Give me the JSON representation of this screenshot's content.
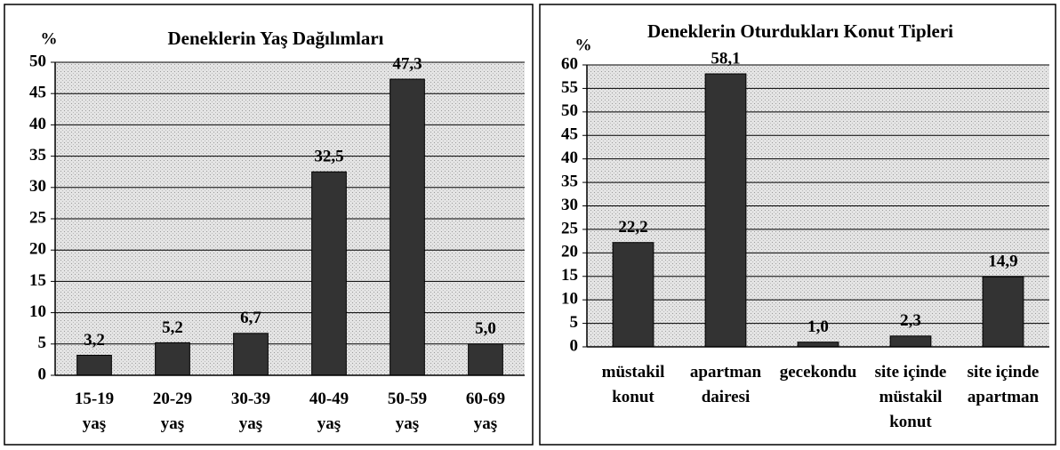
{
  "chart_data": [
    {
      "type": "bar",
      "title": "Deneklerin Yaş Dağılımları",
      "y_label": "%",
      "categories": [
        "15-19\nyaş",
        "20-29\nyaş",
        "30-39\nyaş",
        "40-49\nyaş",
        "50-59\nyaş",
        "60-69\nyaş"
      ],
      "values": [
        3.2,
        5.2,
        6.7,
        32.5,
        47.3,
        5.0
      ],
      "value_labels": [
        "3,2",
        "5,2",
        "6,7",
        "32,5",
        "47,3",
        "5,0"
      ],
      "color": "#333333",
      "ylim": [
        0,
        50
      ],
      "yticks": [
        0,
        5,
        10,
        15,
        20,
        25,
        30,
        35,
        40,
        45,
        50
      ],
      "grid": true
    },
    {
      "type": "bar",
      "title": "Deneklerin Oturdukları Konut Tipleri",
      "y_label": "%",
      "categories": [
        "müstakil\nkonut",
        "apartman\ndairesi",
        "gecekondu",
        "site içinde\nmüstakil\nkonut",
        "site içinde\napartman"
      ],
      "values": [
        22.2,
        58.1,
        1.0,
        2.3,
        14.9
      ],
      "value_labels": [
        "22,2",
        "58,1",
        "1,0",
        "2,3",
        "14,9"
      ],
      "color": "#333333",
      "ylim": [
        0,
        60
      ],
      "yticks": [
        0,
        5,
        10,
        15,
        20,
        25,
        30,
        35,
        40,
        45,
        50,
        55,
        60
      ],
      "grid": true
    }
  ]
}
